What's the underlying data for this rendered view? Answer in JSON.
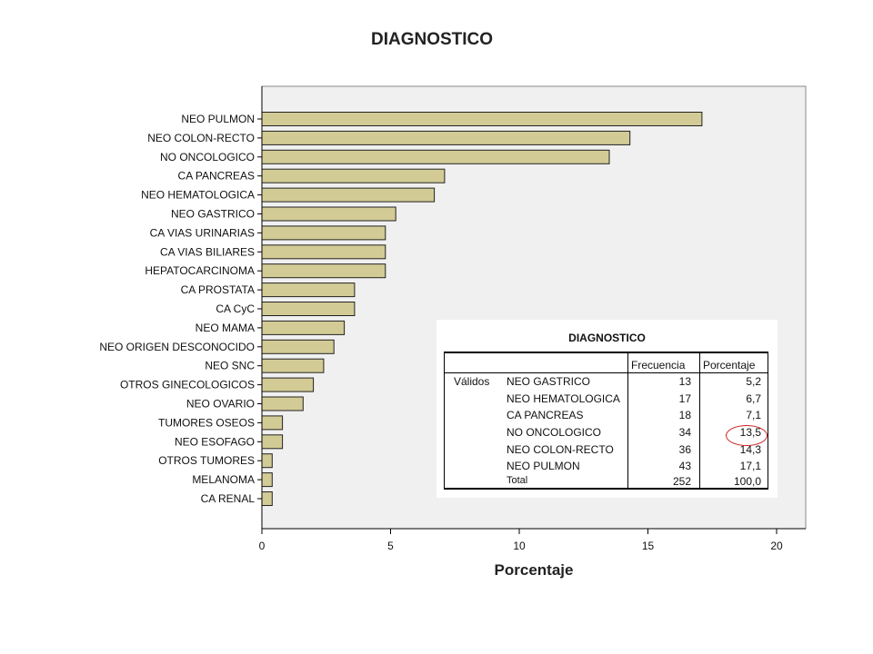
{
  "chart_data": {
    "type": "bar",
    "orientation": "horizontal",
    "title": "DIAGNOSTICO",
    "xlabel": "Porcentaje",
    "ylabel": "",
    "xlim": [
      0,
      20
    ],
    "xticks": [
      "0",
      "5",
      "10",
      "15",
      "20"
    ],
    "bar_color": "#d3cb95",
    "plot_background": "#f0f0f0",
    "categories": [
      "NEO PULMON",
      "NEO COLON-RECTO",
      "NO ONCOLOGICO",
      "CA PANCREAS",
      "NEO HEMATOLOGICA",
      "NEO GASTRICO",
      "CA VIAS URINARIAS",
      "CA VIAS BILIARES",
      "HEPATOCARCINOMA",
      "CA PROSTATA",
      "CA CyC",
      "NEO MAMA",
      "NEO ORIGEN DESCONOCIDO",
      "NEO SNC",
      "OTROS GINECOLOGICOS",
      "NEO OVARIO",
      "TUMORES OSEOS",
      "NEO ESOFAGO",
      "OTROS TUMORES",
      "MELANOMA",
      "CA RENAL"
    ],
    "values": [
      17.1,
      14.3,
      13.5,
      7.1,
      6.7,
      5.2,
      4.8,
      4.8,
      4.8,
      3.6,
      3.6,
      3.2,
      2.8,
      2.4,
      2.0,
      1.6,
      0.8,
      0.8,
      0.4,
      0.4,
      0.4
    ]
  },
  "table": {
    "title": "DIAGNOSTICO",
    "headers": [
      "Frecuencia",
      "Porcentaje"
    ],
    "group_label": "Válidos",
    "rows": [
      {
        "label": "NEO GASTRICO",
        "freq": "13",
        "pct": "5,2"
      },
      {
        "label": "NEO HEMATOLOGICA",
        "freq": "17",
        "pct": "6,7"
      },
      {
        "label": "CA PANCREAS",
        "freq": "18",
        "pct": "7,1"
      },
      {
        "label": "NO ONCOLOGICO",
        "freq": "34",
        "pct": "13,5"
      },
      {
        "label": "NEO COLON-RECTO",
        "freq": "36",
        "pct": "14,3"
      },
      {
        "label": "NEO PULMON",
        "freq": "43",
        "pct": "17,1"
      },
      {
        "label": "Total",
        "freq": "252",
        "pct": "100,0"
      }
    ],
    "highlight_color": "#cc2222"
  }
}
